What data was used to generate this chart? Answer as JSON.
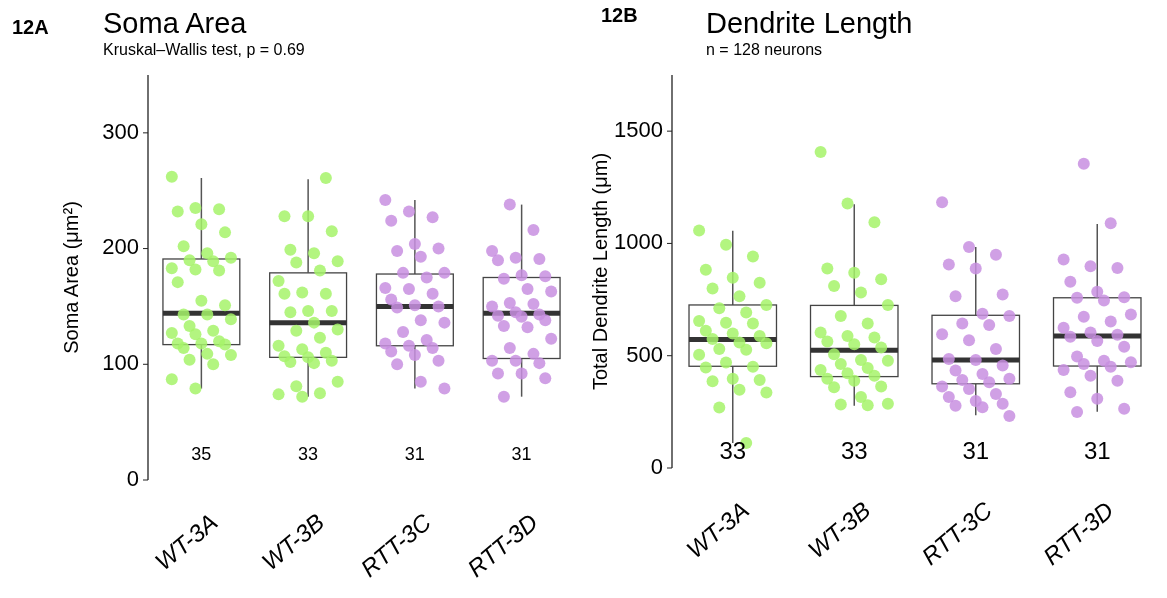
{
  "chart_data": [
    {
      "type": "box",
      "title": "Soma Area",
      "subtitle": "Kruskal–Wallis test, p = 0.69",
      "ylabel": "Soma Area (μm²)",
      "categories": [
        "WT-3A",
        "WT-3B",
        "RTT-3C",
        "RTT-3D"
      ],
      "ylim": [
        0,
        350
      ],
      "yticks": [
        0,
        100,
        200,
        300
      ],
      "grid": false,
      "boxes": [
        {
          "low": 79,
          "q1": 117,
          "median": 144,
          "q3": 191,
          "high": 261
        },
        {
          "low": 72,
          "q1": 106,
          "median": 136,
          "q3": 179,
          "high": 260
        },
        {
          "low": 79,
          "q1": 116,
          "median": 150,
          "q3": 178,
          "high": 242
        },
        {
          "low": 72,
          "q1": 105,
          "median": 144,
          "q3": 175,
          "high": 238
        }
      ],
      "series": [
        {
          "type": "scatter",
          "color": "#a6f36a",
          "x": [
            "WT-3A",
            "WT-3A",
            "WT-3A",
            "WT-3A",
            "WT-3A",
            "WT-3A",
            "WT-3A",
            "WT-3A",
            "WT-3A",
            "WT-3A",
            "WT-3A",
            "WT-3A",
            "WT-3A",
            "WT-3A",
            "WT-3A",
            "WT-3A",
            "WT-3A",
            "WT-3A",
            "WT-3A",
            "WT-3A",
            "WT-3A",
            "WT-3A",
            "WT-3A",
            "WT-3A",
            "WT-3A",
            "WT-3A",
            "WT-3A",
            "WT-3A",
            "WT-3A",
            "WT-3A",
            "WT-3A",
            "WT-3A",
            "WT-3A",
            "WT-3A",
            "WT-3A",
            "WT-3B",
            "WT-3B",
            "WT-3B",
            "WT-3B",
            "WT-3B",
            "WT-3B",
            "WT-3B",
            "WT-3B",
            "WT-3B",
            "WT-3B",
            "WT-3B",
            "WT-3B",
            "WT-3B",
            "WT-3B",
            "WT-3B",
            "WT-3B",
            "WT-3B",
            "WT-3B",
            "WT-3B",
            "WT-3B",
            "WT-3B",
            "WT-3B",
            "WT-3B",
            "WT-3B",
            "WT-3B",
            "WT-3B",
            "WT-3B",
            "WT-3B",
            "WT-3B",
            "WT-3B",
            "WT-3B",
            "WT-3B",
            "WT-3B"
          ],
          "values": [
            262,
            235,
            234,
            232,
            221,
            214,
            202,
            196,
            192,
            190,
            189,
            183,
            182,
            181,
            171,
            155,
            151,
            143,
            143,
            139,
            133,
            129,
            127,
            126,
            120,
            118,
            118,
            117,
            114,
            109,
            108,
            104,
            100,
            87,
            79,
            261,
            228,
            228,
            215,
            199,
            196,
            189,
            188,
            181,
            172,
            162,
            161,
            161,
            146,
            146,
            145,
            136,
            130,
            129,
            123,
            116,
            113,
            110,
            107,
            106,
            103,
            102,
            101,
            85,
            81,
            75,
            74,
            72
          ]
        },
        {
          "type": "scatter",
          "color": "#c88fe0",
          "x": [
            "RTT-3C",
            "RTT-3C",
            "RTT-3C",
            "RTT-3C",
            "RTT-3C",
            "RTT-3C",
            "RTT-3C",
            "RTT-3C",
            "RTT-3C",
            "RTT-3C",
            "RTT-3C",
            "RTT-3C",
            "RTT-3C",
            "RTT-3C",
            "RTT-3C",
            "RTT-3C",
            "RTT-3C",
            "RTT-3C",
            "RTT-3C",
            "RTT-3C",
            "RTT-3C",
            "RTT-3C",
            "RTT-3C",
            "RTT-3C",
            "RTT-3C",
            "RTT-3C",
            "RTT-3C",
            "RTT-3C",
            "RTT-3C",
            "RTT-3C",
            "RTT-3C",
            "RTT-3D",
            "RTT-3D",
            "RTT-3D",
            "RTT-3D",
            "RTT-3D",
            "RTT-3D",
            "RTT-3D",
            "RTT-3D",
            "RTT-3D",
            "RTT-3D",
            "RTT-3D",
            "RTT-3D",
            "RTT-3D",
            "RTT-3D",
            "RTT-3D",
            "RTT-3D",
            "RTT-3D",
            "RTT-3D",
            "RTT-3D",
            "RTT-3D",
            "RTT-3D",
            "RTT-3D",
            "RTT-3D",
            "RTT-3D",
            "RTT-3D",
            "RTT-3D",
            "RTT-3D",
            "RTT-3D",
            "RTT-3D",
            "RTT-3D",
            "RTT-3D"
          ],
          "values": [
            242,
            232,
            227,
            224,
            204,
            200,
            198,
            193,
            179,
            179,
            175,
            166,
            165,
            161,
            156,
            151,
            150,
            149,
            138,
            136,
            128,
            121,
            118,
            116,
            114,
            111,
            108,
            103,
            100,
            85,
            79,
            238,
            216,
            198,
            192,
            191,
            190,
            177,
            176,
            174,
            165,
            163,
            153,
            152,
            150,
            145,
            143,
            142,
            141,
            138,
            133,
            132,
            122,
            114,
            109,
            103,
            103,
            101,
            92,
            92,
            88,
            72
          ]
        }
      ],
      "annotations": [
        "12A",
        "35",
        "33",
        "31",
        "31"
      ]
    },
    {
      "type": "box",
      "title": "Dendrite Length",
      "subtitle": "n = 128 neurons",
      "ylabel": "Total Dendrite Length (μm)",
      "categories": [
        "WT-3A",
        "WT-3B",
        "RTT-3C",
        "RTT-3D"
      ],
      "ylim": [
        0,
        1750
      ],
      "yticks": [
        0,
        500,
        1000,
        1500
      ],
      "grid": false,
      "boxes": [
        {
          "low": 111,
          "q1": 453,
          "median": 572,
          "q3": 726,
          "high": 1056
        },
        {
          "low": 277,
          "q1": 407,
          "median": 524,
          "q3": 724,
          "high": 1174
        },
        {
          "low": 235,
          "q1": 375,
          "median": 481,
          "q3": 680,
          "high": 984
        },
        {
          "low": 250,
          "q1": 454,
          "median": 588,
          "q3": 758,
          "high": 1087
        }
      ],
      "series": [
        {
          "type": "scatter",
          "color": "#a6f36a",
          "x": [
            "WT-3A",
            "WT-3A",
            "WT-3A",
            "WT-3A",
            "WT-3A",
            "WT-3A",
            "WT-3A",
            "WT-3A",
            "WT-3A",
            "WT-3A",
            "WT-3A",
            "WT-3A",
            "WT-3A",
            "WT-3A",
            "WT-3A",
            "WT-3A",
            "WT-3A",
            "WT-3A",
            "WT-3A",
            "WT-3A",
            "WT-3A",
            "WT-3A",
            "WT-3A",
            "WT-3A",
            "WT-3A",
            "WT-3A",
            "WT-3A",
            "WT-3A",
            "WT-3A",
            "WT-3A",
            "WT-3A",
            "WT-3A",
            "WT-3A",
            "WT-3B",
            "WT-3B",
            "WT-3B",
            "WT-3B",
            "WT-3B",
            "WT-3B",
            "WT-3B",
            "WT-3B",
            "WT-3B",
            "WT-3B",
            "WT-3B",
            "WT-3B",
            "WT-3B",
            "WT-3B",
            "WT-3B",
            "WT-3B",
            "WT-3B",
            "WT-3B",
            "WT-3B",
            "WT-3B",
            "WT-3B",
            "WT-3B",
            "WT-3B",
            "WT-3B",
            "WT-3B",
            "WT-3B",
            "WT-3B",
            "WT-3B",
            "WT-3B",
            "WT-3B",
            "WT-3B",
            "WT-3B",
            "WT-3B"
          ],
          "values": [
            1058,
            994,
            942,
            883,
            847,
            825,
            799,
            765,
            726,
            711,
            692,
            655,
            647,
            643,
            611,
            599,
            588,
            574,
            559,
            555,
            530,
            527,
            504,
            470,
            451,
            448,
            397,
            392,
            386,
            348,
            336,
            269,
            111,
            1407,
            1178,
            1094,
            888,
            869,
            840,
            810,
            781,
            726,
            677,
            643,
            603,
            588,
            581,
            563,
            551,
            537,
            507,
            481,
            478,
            463,
            445,
            436,
            422,
            411,
            397,
            389,
            363,
            360,
            316,
            286,
            283,
            279
          ]
        },
        {
          "type": "scatter",
          "color": "#c88fe0",
          "x": [
            "RTT-3C",
            "RTT-3C",
            "RTT-3C",
            "RTT-3C",
            "RTT-3C",
            "RTT-3C",
            "RTT-3C",
            "RTT-3C",
            "RTT-3C",
            "RTT-3C",
            "RTT-3C",
            "RTT-3C",
            "RTT-3C",
            "RTT-3C",
            "RTT-3C",
            "RTT-3C",
            "RTT-3C",
            "RTT-3C",
            "RTT-3C",
            "RTT-3C",
            "RTT-3C",
            "RTT-3C",
            "RTT-3C",
            "RTT-3C",
            "RTT-3C",
            "RTT-3C",
            "RTT-3C",
            "RTT-3C",
            "RTT-3C",
            "RTT-3C",
            "RTT-3C",
            "RTT-3D",
            "RTT-3D",
            "RTT-3D",
            "RTT-3D",
            "RTT-3D",
            "RTT-3D",
            "RTT-3D",
            "RTT-3D",
            "RTT-3D",
            "RTT-3D",
            "RTT-3D",
            "RTT-3D",
            "RTT-3D",
            "RTT-3D",
            "RTT-3D",
            "RTT-3D",
            "RTT-3D",
            "RTT-3D",
            "RTT-3D",
            "RTT-3D",
            "RTT-3D",
            "RTT-3D",
            "RTT-3D",
            "RTT-3D",
            "RTT-3D",
            "RTT-3D",
            "RTT-3D",
            "RTT-3D",
            "RTT-3D",
            "RTT-3D",
            "RTT-3D"
          ],
          "values": [
            1183,
            984,
            950,
            906,
            888,
            773,
            765,
            687,
            677,
            643,
            637,
            596,
            569,
            530,
            485,
            481,
            456,
            434,
            419,
            397,
            392,
            382,
            363,
            352,
            330,
            316,
            298,
            286,
            277,
            271,
            232,
            1355,
            1090,
            928,
            898,
            891,
            829,
            785,
            760,
            758,
            746,
            684,
            673,
            652,
            625,
            603,
            593,
            584,
            566,
            540,
            496,
            478,
            471,
            463,
            451,
            436,
            411,
            389,
            337,
            308,
            264,
            249
          ]
        }
      ],
      "annotations": [
        "12B",
        "33",
        "33",
        "31",
        "31"
      ]
    }
  ]
}
